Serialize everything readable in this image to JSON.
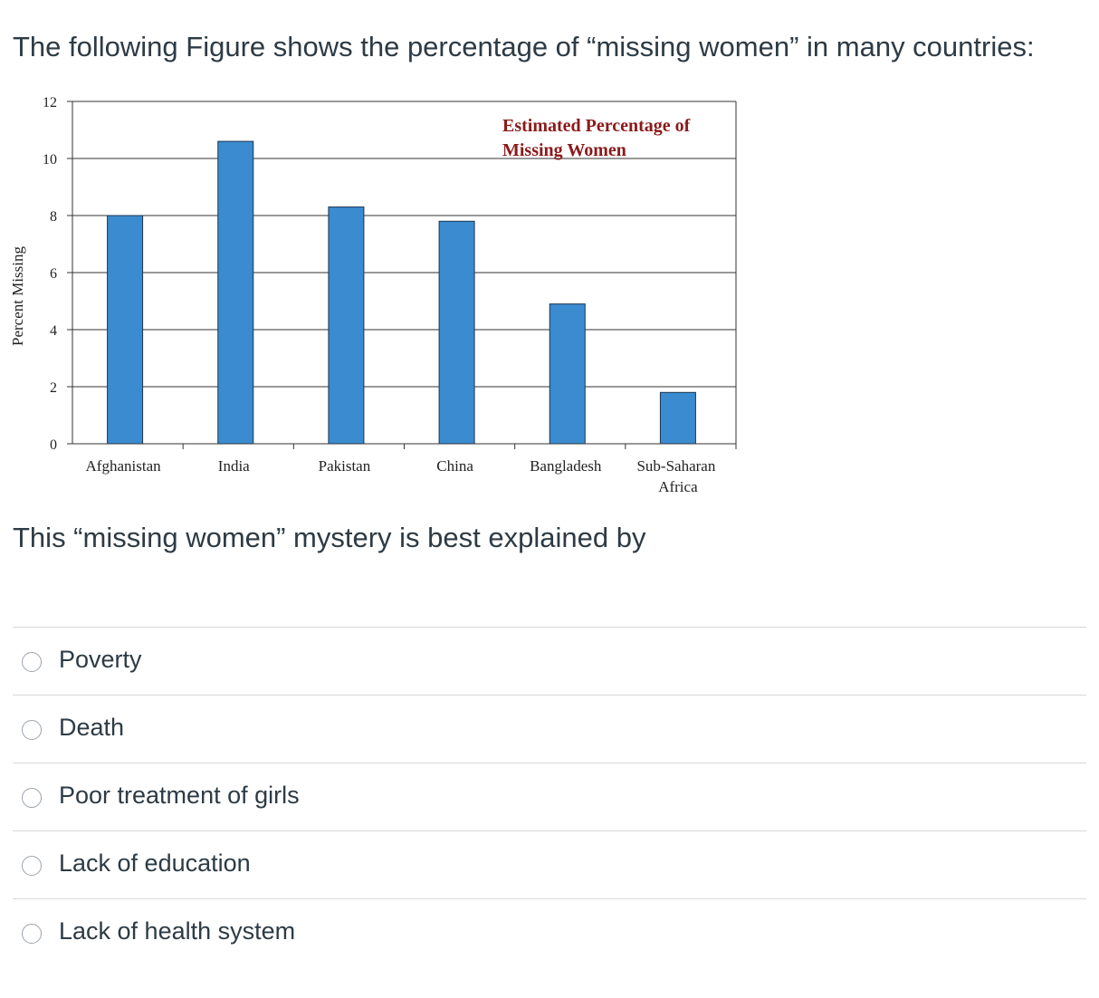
{
  "question": {
    "title": "The following Figure shows the percentage of “missing women” in many countries:",
    "prompt": "This “missing women” mystery is best explained by"
  },
  "answers": [
    {
      "label": "Poverty"
    },
    {
      "label": "Death"
    },
    {
      "label": "Poor treatment of girls"
    },
    {
      "label": "Lack of education"
    },
    {
      "label": "Lack of health system"
    }
  ],
  "chart_data": {
    "type": "bar",
    "title_lines": [
      "Estimated Percentage of",
      "Missing Women"
    ],
    "ylabel": "Percent Missing",
    "xlabel": "",
    "categories": [
      {
        "lines": [
          "Afghanistan"
        ]
      },
      {
        "lines": [
          "India"
        ]
      },
      {
        "lines": [
          "Pakistan"
        ]
      },
      {
        "lines": [
          "China"
        ]
      },
      {
        "lines": [
          "Bangladesh"
        ]
      },
      {
        "lines": [
          "Sub-Saharan",
          "Africa"
        ]
      }
    ],
    "values": [
      8.0,
      10.6,
      8.3,
      7.8,
      4.9,
      1.8
    ],
    "ylim": [
      0,
      12
    ],
    "yticks": [
      0,
      2,
      4,
      6,
      8,
      10,
      12
    ],
    "grid": true,
    "bar_color": "#3a8bd0",
    "title_color": "#8b1a1a"
  }
}
